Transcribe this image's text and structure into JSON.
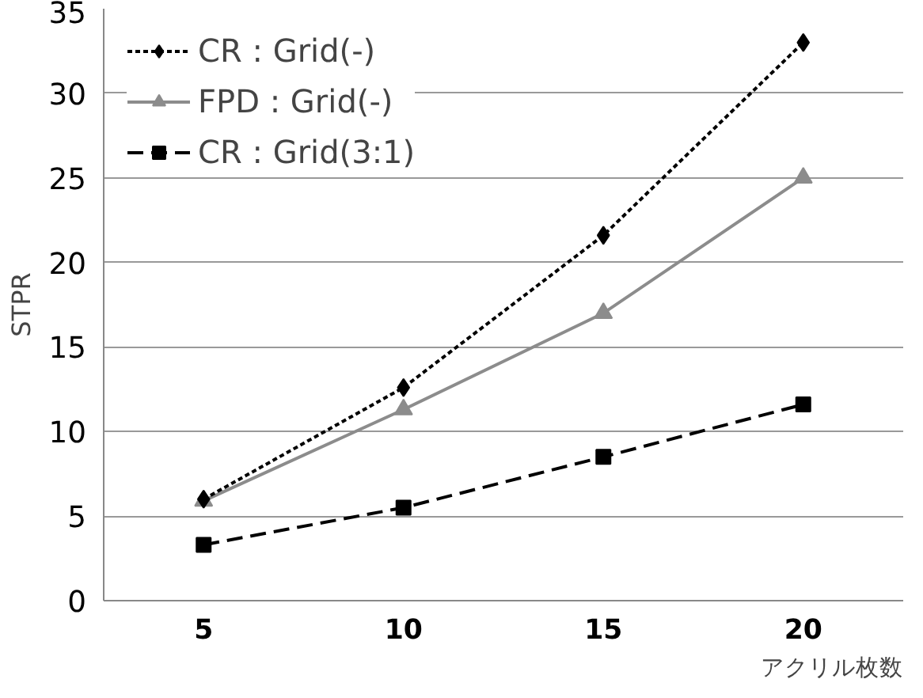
{
  "chart_data": {
    "type": "line",
    "ylabel": "STPR",
    "xlabel": "アクリル枚数",
    "categories": [
      "5",
      "10",
      "15",
      "20"
    ],
    "ylim": [
      0,
      35
    ],
    "yticks": [
      0,
      5,
      10,
      15,
      20,
      25,
      30,
      35
    ],
    "grid": "y",
    "legend": "top left",
    "series": [
      {
        "name": "CR : Grid(-)",
        "color": "#000000",
        "values": [
          6.0,
          12.6,
          21.6,
          33.0
        ],
        "marker": "diamond",
        "line_style": "dotted"
      },
      {
        "name": "FPD : Grid(-)",
        "color": "#8c8c8c",
        "values": [
          5.9,
          11.3,
          17.0,
          25.0
        ],
        "marker": "triangle",
        "line_style": "solid"
      },
      {
        "name": "CR : Grid(3:1)",
        "color": "#000000",
        "values": [
          3.3,
          5.5,
          8.5,
          11.6
        ],
        "marker": "square",
        "line_style": "dashed"
      }
    ]
  }
}
